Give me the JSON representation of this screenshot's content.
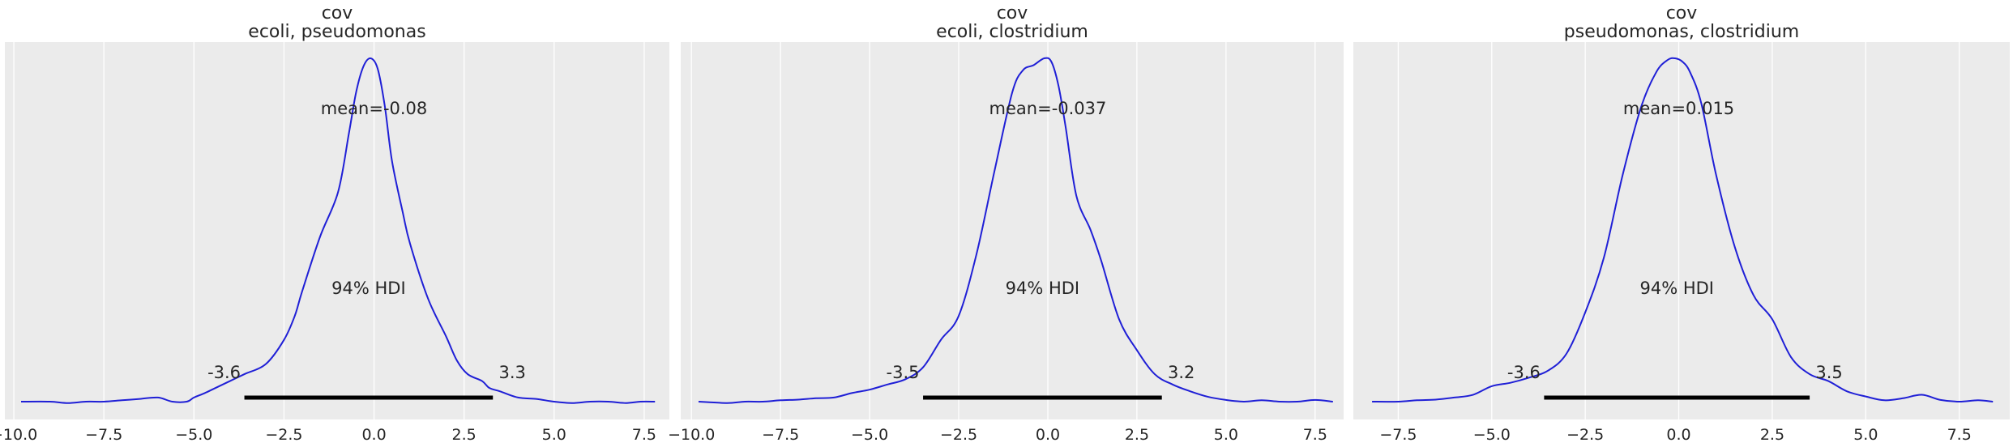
{
  "figure": {
    "background": "#ffffff",
    "panel_background": "#ebebeb",
    "grid_color": "#ffffff",
    "kde_color": "#1f1fd6",
    "hdi_color": "#000000"
  },
  "chart_data": [
    {
      "type": "area",
      "title": "cov\necoli, pseudomonas",
      "title_lines": [
        "cov",
        "ecoli, pseudomonas"
      ],
      "xlabel": "",
      "ylabel": "",
      "grid": true,
      "x_ticks": [
        -10.0,
        -7.5,
        -5.0,
        -2.5,
        0.0,
        2.5,
        5.0,
        7.5
      ],
      "x_tick_labels": [
        "−10.0",
        "−7.5",
        "−5.0",
        "−2.5",
        "0.0",
        "2.5",
        "5.0",
        "7.5"
      ],
      "xlim": [
        -10.25,
        8.2
      ],
      "ylim": [
        0,
        1.08
      ],
      "mean_label": "mean=-0.08",
      "hdi_label": "94% HDI",
      "hdi": [
        -3.6,
        3.3
      ],
      "hdi_low_label": "-3.6",
      "hdi_high_label": "3.3",
      "series": [
        {
          "x": [
            -9.8,
            -9.0,
            -8.5,
            -8.0,
            -7.5,
            -7.0,
            -6.5,
            -6.0,
            -5.6,
            -5.2,
            -5.0,
            -4.7,
            -4.4,
            -4.0,
            -3.6,
            -3.0,
            -2.5,
            -2.2,
            -2.0,
            -1.5,
            -1.0,
            -0.7,
            -0.5,
            -0.3,
            -0.1,
            0.1,
            0.3,
            0.5,
            0.8,
            1.0,
            1.5,
            2.0,
            2.3,
            2.6,
            3.0,
            3.2,
            3.5,
            4.0,
            4.5,
            5.0,
            5.5,
            6.0,
            6.5,
            7.0,
            7.4,
            7.8
          ],
          "y": [
            0.0,
            0.0,
            -0.004,
            0.0,
            0.0,
            0.004,
            0.008,
            0.012,
            0.0,
            0.0,
            0.012,
            0.025,
            0.04,
            0.06,
            0.08,
            0.11,
            0.18,
            0.25,
            0.32,
            0.48,
            0.61,
            0.78,
            0.9,
            0.975,
            1.0,
            0.97,
            0.86,
            0.7,
            0.55,
            0.46,
            0.3,
            0.19,
            0.12,
            0.08,
            0.06,
            0.04,
            0.03,
            0.012,
            0.008,
            0.0,
            -0.004,
            0.0,
            0.0,
            -0.004,
            0.0,
            0.0
          ]
        }
      ]
    },
    {
      "type": "area",
      "title": "cov\necoli, clostridium",
      "title_lines": [
        "cov",
        "ecoli, clostridium"
      ],
      "xlabel": "",
      "ylabel": "",
      "grid": true,
      "x_ticks": [
        -10.0,
        -7.5,
        -5.0,
        -2.5,
        0.0,
        2.5,
        5.0,
        7.5
      ],
      "x_tick_labels": [
        "−10.0",
        "−7.5",
        "−5.0",
        "−2.5",
        "0.0",
        "2.5",
        "5.0",
        "7.5"
      ],
      "xlim": [
        -10.3,
        8.3
      ],
      "ylim": [
        0,
        1.08
      ],
      "mean_label": "mean=-0.037",
      "hdi_label": "94% HDI",
      "hdi": [
        -3.5,
        3.2
      ],
      "hdi_low_label": "-3.5",
      "hdi_high_label": "3.2",
      "series": [
        {
          "x": [
            -9.8,
            -9.0,
            -8.5,
            -8.0,
            -7.5,
            -7.0,
            -6.5,
            -6.0,
            -5.5,
            -5.0,
            -4.5,
            -4.0,
            -3.5,
            -3.0,
            -2.5,
            -2.0,
            -1.5,
            -1.0,
            -0.7,
            -0.4,
            -0.1,
            0.1,
            0.3,
            0.5,
            0.8,
            1.2,
            1.5,
            2.0,
            2.5,
            3.0,
            3.5,
            4.0,
            4.5,
            5.0,
            5.5,
            6.0,
            6.5,
            7.0,
            7.5,
            8.0
          ],
          "y": [
            0.0,
            -0.004,
            0.0,
            0.0,
            0.004,
            0.006,
            0.01,
            0.012,
            0.025,
            0.035,
            0.05,
            0.065,
            0.1,
            0.18,
            0.25,
            0.43,
            0.67,
            0.9,
            0.965,
            0.98,
            1.0,
            0.99,
            0.92,
            0.8,
            0.6,
            0.5,
            0.41,
            0.24,
            0.15,
            0.08,
            0.05,
            0.03,
            0.014,
            0.005,
            0.0,
            0.004,
            0.0,
            0.0,
            0.005,
            0.0
          ]
        }
      ]
    },
    {
      "type": "area",
      "title": "cov\npseudomonas, clostridium",
      "title_lines": [
        "cov",
        "pseudomonas, clostridium"
      ],
      "xlabel": "",
      "ylabel": "",
      "grid": true,
      "x_ticks": [
        -7.5,
        -5.0,
        -2.5,
        0.0,
        2.5,
        5.0,
        7.5
      ],
      "x_tick_labels": [
        "−7.5",
        "−5.0",
        "−2.5",
        "0.0",
        "2.5",
        "5.0",
        "7.5"
      ],
      "xlim": [
        -8.7,
        8.85
      ],
      "ylim": [
        0,
        1.08
      ],
      "mean_label": "mean=0.015",
      "hdi_label": "94% HDI",
      "hdi": [
        -3.6,
        3.5
      ],
      "hdi_low_label": "-3.6",
      "hdi_high_label": "3.5",
      "series": [
        {
          "x": [
            -8.2,
            -7.5,
            -7.0,
            -6.5,
            -6.0,
            -5.5,
            -5.0,
            -4.5,
            -4.0,
            -3.5,
            -3.0,
            -2.5,
            -2.0,
            -1.5,
            -1.0,
            -0.6,
            -0.3,
            -0.1,
            0.1,
            0.3,
            0.6,
            1.0,
            1.5,
            2.0,
            2.5,
            3.0,
            3.5,
            4.0,
            4.5,
            5.0,
            5.5,
            6.0,
            6.5,
            7.0,
            7.5,
            8.0,
            8.4
          ],
          "y": [
            0.0,
            0.0,
            0.004,
            0.006,
            0.012,
            0.02,
            0.045,
            0.055,
            0.07,
            0.09,
            0.14,
            0.26,
            0.42,
            0.66,
            0.86,
            0.96,
            0.995,
            1.0,
            0.99,
            0.96,
            0.87,
            0.66,
            0.45,
            0.31,
            0.24,
            0.13,
            0.08,
            0.06,
            0.03,
            0.015,
            0.004,
            0.01,
            0.02,
            0.005,
            0.0,
            0.004,
            0.0
          ]
        }
      ]
    }
  ]
}
